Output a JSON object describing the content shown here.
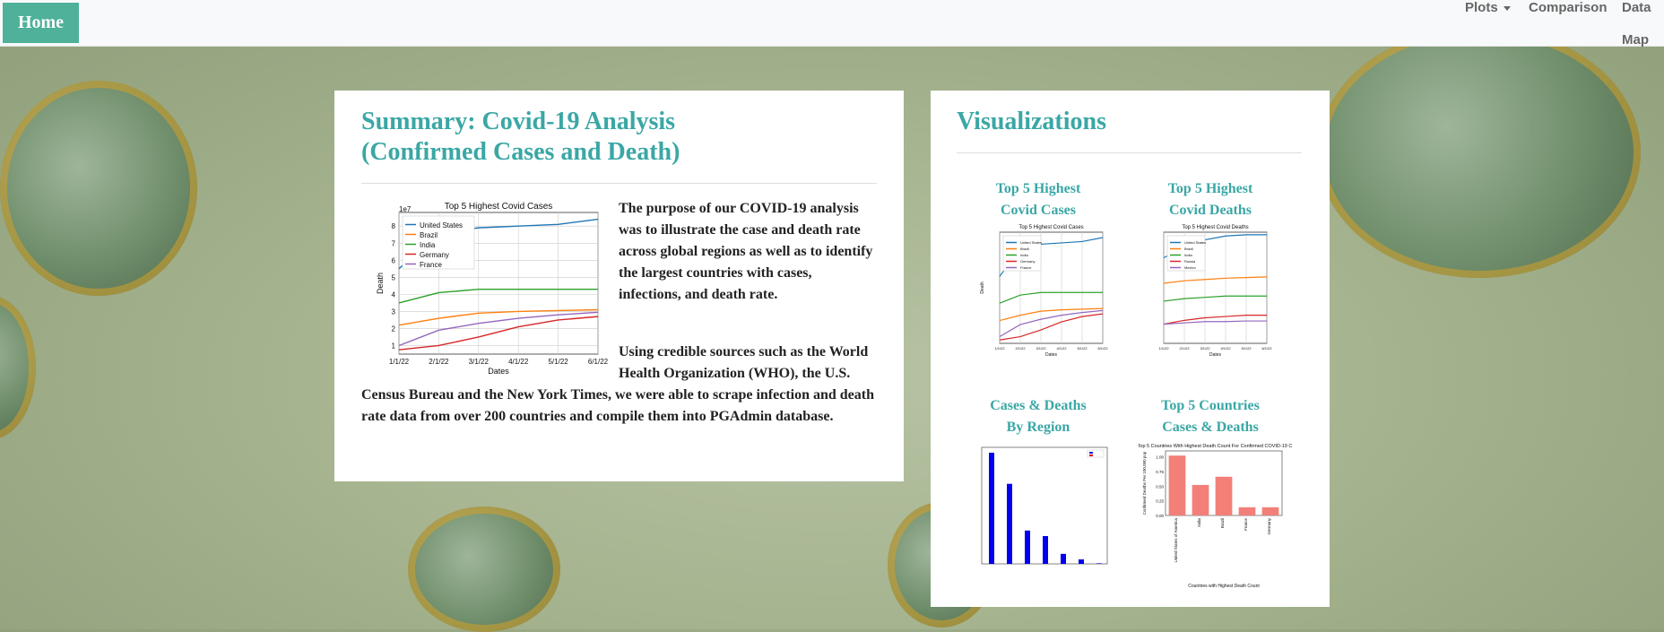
{
  "nav": {
    "home_label": "Home",
    "plots_label": "Plots",
    "comparison_label": "Comparison",
    "data_label": "Data",
    "map_label": "Map"
  },
  "summary": {
    "title_line1": "Summary: Covid-19 Analysis",
    "title_line2": "(Confirmed Cases and Death)",
    "paragraph1": [
      "The purpose of our COVID-19 analysis",
      "was to illustrate the case and death rate",
      "across global regions as well as to identify",
      "the largest countries with cases,",
      "infections, and death rate."
    ],
    "paragraph2_side": [
      "Using credible sources such as the World",
      "Health Organization (WHO), the U.S."
    ],
    "paragraph2_full": [
      "Census Bureau and the New York Times, we were able to scrape infection and death",
      "rate data from over 200 countries and compile them into PGAdmin database."
    ]
  },
  "visualizations": {
    "title": "Visualizations",
    "items": [
      {
        "line1": "Top 5 Highest",
        "line2": "Covid Cases"
      },
      {
        "line1": "Top 5 Highest",
        "line2": "Covid Deaths"
      },
      {
        "line1": "Cases & Deaths",
        "line2": "By Region"
      },
      {
        "line1": "Top 5 Countries",
        "line2": "Cases & Deaths"
      }
    ]
  },
  "chart_data": [
    {
      "type": "line",
      "title": "Top 5 Highest Covid Cases",
      "xlabel": "Dates",
      "ylabel": "Death",
      "scale_label": "1e7",
      "categories": [
        "1/1/22",
        "2/1/22",
        "3/1/22",
        "4/1/22",
        "5/1/22",
        "6/1/22"
      ],
      "ylim": [
        0.5,
        8.8
      ],
      "yticks": [
        1,
        2,
        3,
        4,
        5,
        6,
        7,
        8
      ],
      "grid": true,
      "legend_position": "top-left",
      "series": [
        {
          "name": "United States",
          "color": "#1f77b4",
          "values": [
            5.5,
            7.6,
            7.9,
            8.0,
            8.1,
            8.4
          ]
        },
        {
          "name": "Brazil",
          "color": "#ff7f0e",
          "values": [
            2.2,
            2.6,
            2.9,
            3.0,
            3.05,
            3.1
          ]
        },
        {
          "name": "India",
          "color": "#2ca02c",
          "values": [
            3.5,
            4.1,
            4.3,
            4.3,
            4.3,
            4.3
          ]
        },
        {
          "name": "Germany",
          "color": "#d62728",
          "values": [
            0.75,
            1.0,
            1.5,
            2.1,
            2.5,
            2.7
          ]
        },
        {
          "name": "France",
          "color": "#9467bd",
          "values": [
            1.0,
            1.9,
            2.3,
            2.6,
            2.8,
            2.95
          ]
        }
      ]
    },
    {
      "type": "line",
      "title": "Top 5 Highest Covid Cases",
      "xlabel": "Dates",
      "ylabel": "Death",
      "categories": [
        "1/1/22",
        "2/1/22",
        "3/1/22",
        "4/1/22",
        "5/1/22",
        "6/1/22"
      ],
      "ylim": [
        0.5,
        8.8
      ],
      "series": [
        {
          "name": "United States",
          "color": "#1f77b4",
          "values": [
            5.5,
            7.6,
            7.9,
            8.0,
            8.1,
            8.4
          ]
        },
        {
          "name": "Brazil",
          "color": "#ff7f0e",
          "values": [
            2.2,
            2.6,
            2.9,
            3.0,
            3.05,
            3.1
          ]
        },
        {
          "name": "India",
          "color": "#2ca02c",
          "values": [
            3.5,
            4.1,
            4.3,
            4.3,
            4.3,
            4.3
          ]
        },
        {
          "name": "Germany",
          "color": "#d62728",
          "values": [
            0.75,
            1.0,
            1.5,
            2.1,
            2.5,
            2.7
          ]
        },
        {
          "name": "France",
          "color": "#9467bd",
          "values": [
            1.0,
            1.9,
            2.3,
            2.6,
            2.8,
            2.95
          ]
        }
      ]
    },
    {
      "type": "line",
      "title": "Top 5 Highest Covid Deaths",
      "xlabel": "Dates",
      "categories": [
        "1/1/22",
        "2/1/22",
        "3/1/22",
        "4/1/22",
        "5/1/22",
        "6/1/22"
      ],
      "ylim": [
        0.15,
        1.02
      ],
      "series": [
        {
          "name": "United States",
          "color": "#1f77b4",
          "values": [
            0.82,
            0.9,
            0.96,
            0.99,
            1.0,
            1.0
          ]
        },
        {
          "name": "Brazil",
          "color": "#ff7f0e",
          "values": [
            0.62,
            0.64,
            0.65,
            0.66,
            0.665,
            0.67
          ]
        },
        {
          "name": "India",
          "color": "#2ca02c",
          "values": [
            0.48,
            0.5,
            0.51,
            0.52,
            0.52,
            0.52
          ]
        },
        {
          "name": "Russia",
          "color": "#d62728",
          "values": [
            0.3,
            0.33,
            0.35,
            0.36,
            0.37,
            0.37
          ]
        },
        {
          "name": "Mexico",
          "color": "#9467bd",
          "values": [
            0.3,
            0.31,
            0.32,
            0.32,
            0.325,
            0.325
          ]
        }
      ]
    },
    {
      "type": "bar",
      "title": "",
      "values": [
        100,
        72,
        30,
        25,
        9,
        4,
        0.5
      ],
      "color": "#0000ee"
    },
    {
      "type": "bar",
      "title": "Top 5 Countries With Highest Death Count For Confirmed COVID-19 C",
      "xlabel": "Countries with Highest Death Count",
      "ylabel": "Confirmed Deaths Per 100,000 pop",
      "categories": [
        "United States of America",
        "India",
        "Brazil",
        "France",
        "Germany"
      ],
      "values": [
        1.02,
        0.52,
        0.66,
        0.14,
        0.14
      ],
      "yticks": [
        0.0,
        0.25,
        0.5,
        0.75,
        1.0
      ],
      "color": "#f28079"
    }
  ]
}
